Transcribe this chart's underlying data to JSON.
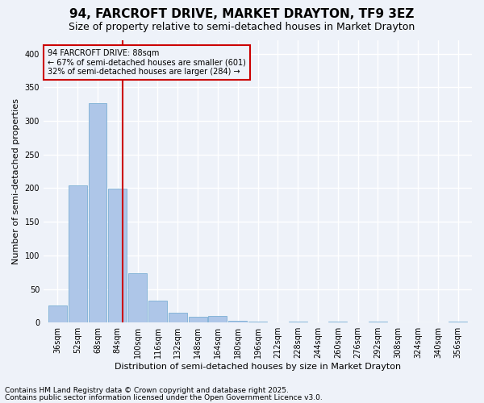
{
  "title": "94, FARCROFT DRIVE, MARKET DRAYTON, TF9 3EZ",
  "subtitle": "Size of property relative to semi-detached houses in Market Drayton",
  "xlabel": "Distribution of semi-detached houses by size in Market Drayton",
  "ylabel": "Number of semi-detached properties",
  "categories": [
    "36sqm",
    "52sqm",
    "68sqm",
    "84sqm",
    "100sqm",
    "116sqm",
    "132sqm",
    "148sqm",
    "164sqm",
    "180sqm",
    "196sqm",
    "212sqm",
    "228sqm",
    "244sqm",
    "260sqm",
    "276sqm",
    "292sqm",
    "308sqm",
    "324sqm",
    "340sqm",
    "356sqm"
  ],
  "values": [
    25,
    204,
    327,
    199,
    74,
    33,
    15,
    9,
    10,
    3,
    2,
    0,
    1,
    0,
    2,
    0,
    1,
    0,
    0,
    0,
    2
  ],
  "bar_color": "#aec6e8",
  "bar_edgecolor": "#7bafd4",
  "vline_color": "#cc0000",
  "annotation_title": "94 FARCROFT DRIVE: 88sqm",
  "annotation_line1": "← 67% of semi-detached houses are smaller (601)",
  "annotation_line2": "32% of semi-detached houses are larger (284) →",
  "annotation_box_color": "#cc0000",
  "ylim": [
    0,
    420
  ],
  "footnote1": "Contains HM Land Registry data © Crown copyright and database right 2025.",
  "footnote2": "Contains public sector information licensed under the Open Government Licence v3.0.",
  "background_color": "#eef2f9",
  "grid_color": "#ffffff",
  "title_fontsize": 11,
  "subtitle_fontsize": 9,
  "axis_label_fontsize": 8,
  "tick_fontsize": 7,
  "footnote_fontsize": 6.5,
  "annotation_fontsize": 7
}
